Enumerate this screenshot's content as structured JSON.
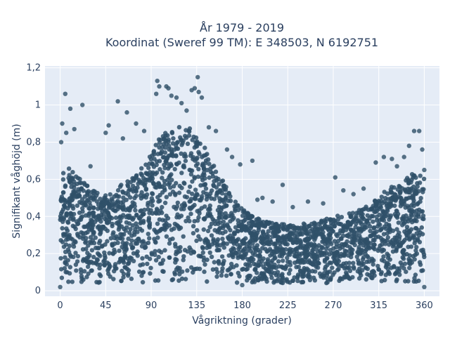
{
  "chart_data": {
    "type": "scatter",
    "title": "År 1979 - 2019",
    "subtitle": "Koordinat (Sweref 99 TM): E 348503, N 6192751",
    "xlabel": "Vågriktning (grader)",
    "ylabel": "Signifikant våghöjd (m)",
    "xlim": [
      -15,
      375
    ],
    "ylim": [
      -0.03,
      1.21
    ],
    "x_ticks": [
      0,
      45,
      90,
      135,
      180,
      225,
      270,
      315,
      360
    ],
    "x_tick_labels": [
      "0",
      "45",
      "90",
      "135",
      "180",
      "225",
      "270",
      "315",
      "360"
    ],
    "y_ticks": [
      0,
      0.2,
      0.4,
      0.6,
      0.8,
      1,
      1.2
    ],
    "y_tick_labels": [
      "0",
      "0,2",
      "0,4",
      "0,6",
      "0,8",
      "1",
      "1,2"
    ],
    "grid": true,
    "marker_color": "#2f5068",
    "background_color": "#e5ecf6",
    "series": [
      {
        "points": [
          [
            5,
            1.06
          ],
          [
            22,
            1.0
          ],
          [
            10,
            0.98
          ],
          [
            2,
            0.9
          ],
          [
            6,
            0.85
          ],
          [
            14,
            0.87
          ],
          [
            1,
            0.8
          ],
          [
            30,
            0.67
          ],
          [
            45,
            0.85
          ],
          [
            48,
            0.89
          ],
          [
            57,
            1.02
          ],
          [
            66,
            0.96
          ],
          [
            62,
            0.82
          ],
          [
            75,
            0.9
          ],
          [
            83,
            0.86
          ],
          [
            95,
            1.06
          ],
          [
            96,
            1.13
          ],
          [
            98,
            1.1
          ],
          [
            105,
            1.1
          ],
          [
            107,
            1.09
          ],
          [
            110,
            1.05
          ],
          [
            115,
            1.04
          ],
          [
            120,
            1.01
          ],
          [
            125,
            0.97
          ],
          [
            130,
            1.08
          ],
          [
            133,
            1.09
          ],
          [
            136,
            1.15
          ],
          [
            137,
            1.07
          ],
          [
            140,
            1.04
          ],
          [
            147,
            0.88
          ],
          [
            154,
            0.86
          ],
          [
            165,
            0.76
          ],
          [
            170,
            0.72
          ],
          [
            178,
            0.68
          ],
          [
            190,
            0.7
          ],
          [
            195,
            0.49
          ],
          [
            200,
            0.5
          ],
          [
            210,
            0.48
          ],
          [
            220,
            0.57
          ],
          [
            230,
            0.45
          ],
          [
            245,
            0.48
          ],
          [
            260,
            0.47
          ],
          [
            272,
            0.61
          ],
          [
            280,
            0.54
          ],
          [
            290,
            0.52
          ],
          [
            300,
            0.55
          ],
          [
            312,
            0.69
          ],
          [
            320,
            0.72
          ],
          [
            328,
            0.71
          ],
          [
            333,
            0.67
          ],
          [
            340,
            0.72
          ],
          [
            345,
            0.78
          ],
          [
            350,
            0.86
          ],
          [
            355,
            0.86
          ],
          [
            358,
            0.76
          ],
          [
            360,
            0.65
          ],
          [
            0,
            0.02
          ],
          [
            180,
            0.03
          ],
          [
            360,
            0.02
          ]
        ]
      }
    ],
    "density_bands": [
      [
        0,
        0.65
      ],
      [
        8,
        0.67
      ],
      [
        15,
        0.62
      ],
      [
        22,
        0.6
      ],
      [
        30,
        0.56
      ],
      [
        40,
        0.52
      ],
      [
        50,
        0.52
      ],
      [
        60,
        0.57
      ],
      [
        70,
        0.6
      ],
      [
        80,
        0.66
      ],
      [
        90,
        0.74
      ],
      [
        100,
        0.84
      ],
      [
        110,
        0.88
      ],
      [
        120,
        0.9
      ],
      [
        130,
        0.88
      ],
      [
        140,
        0.8
      ],
      [
        150,
        0.7
      ],
      [
        160,
        0.6
      ],
      [
        170,
        0.52
      ],
      [
        180,
        0.44
      ],
      [
        190,
        0.4
      ],
      [
        200,
        0.38
      ],
      [
        210,
        0.37
      ],
      [
        220,
        0.36
      ],
      [
        230,
        0.35
      ],
      [
        240,
        0.36
      ],
      [
        250,
        0.37
      ],
      [
        260,
        0.38
      ],
      [
        270,
        0.4
      ],
      [
        280,
        0.41
      ],
      [
        290,
        0.42
      ],
      [
        300,
        0.45
      ],
      [
        310,
        0.48
      ],
      [
        320,
        0.53
      ],
      [
        330,
        0.57
      ],
      [
        340,
        0.6
      ],
      [
        350,
        0.64
      ],
      [
        360,
        0.63
      ]
    ]
  }
}
